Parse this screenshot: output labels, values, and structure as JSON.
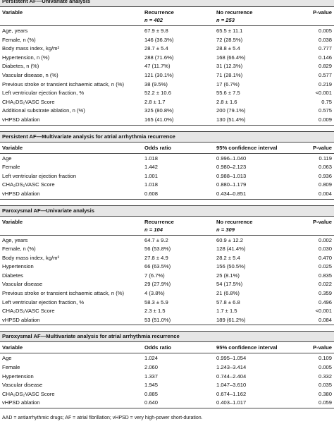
{
  "sections": [
    {
      "title": "Persistent AF—Univariate analysis",
      "columns": [
        {
          "label": "Variable"
        },
        {
          "label": "Recurrence",
          "n": "n = 402"
        },
        {
          "label": "No recurrence",
          "n": "n = 253"
        },
        {
          "label": "P-value"
        }
      ],
      "rows": [
        [
          "Age, years",
          "67.9 ± 9.8",
          "65.5 ± 11.1",
          "0.005"
        ],
        [
          "Female, n (%)",
          "146 (36.3%)",
          "72 (28.5%)",
          "0.038"
        ],
        [
          "Body mass index, kg/m²",
          "28.7 ± 5.4",
          "28.8 ± 5.4",
          "0.777"
        ],
        [
          "Hypertension, n (%)",
          "288 (71.6%)",
          "168 (66.4%)",
          "0.146"
        ],
        [
          "Diabetes, n (%)",
          "47 (11.7%)",
          "31 (12.3%)",
          "0.829"
        ],
        [
          "Vascular disease, n (%)",
          "121 (30.1%)",
          "71 (28.1%)",
          "0.577"
        ],
        [
          "Previous stroke or transient ischaemic attack, n (%)",
          "38 (9.5%)",
          "17 (6.7%)",
          "0.219"
        ],
        [
          "Left ventricular ejection fraction, %",
          "52.2 ± 10.6",
          "55.6 ± 7.5",
          "<0.001"
        ],
        [
          "CHA₂DS₂VASC Score",
          "2.8 ± 1.7",
          "2.8 ± 1.6",
          "0.75"
        ],
        [
          "Additional substrate ablation, n (%)",
          "325 (80.8%)",
          "200 (79.1%)",
          "0.575"
        ],
        [
          "vHPSD ablation",
          "165 (41.0%)",
          "130 (51.4%)",
          "0.009"
        ]
      ]
    },
    {
      "title": "Persistent AF—Multivariate analysis for atrial arrhythmia recurrence",
      "columns": [
        {
          "label": "Variable"
        },
        {
          "label": "Odds ratio"
        },
        {
          "label": "95% confidence interval"
        },
        {
          "label": "P-value"
        }
      ],
      "rows": [
        [
          "Age",
          "1.018",
          "0.996–1.040",
          "0.119"
        ],
        [
          "Female",
          "1.442",
          "0.980–2.123",
          "0.063"
        ],
        [
          "Left ventricular ejection fraction",
          "1.001",
          "0.988–1.013",
          "0.936"
        ],
        [
          "CHA₂DS₂VASC Score",
          "1.018",
          "0.880–1.179",
          "0.809"
        ],
        [
          "vHPSD ablation",
          "0.608",
          "0.434–0.851",
          "0.004"
        ]
      ]
    },
    {
      "title": "Paroxysmal AF—Univariate analysis",
      "columns": [
        {
          "label": "Variable"
        },
        {
          "label": "Recurrence",
          "n": "n = 104"
        },
        {
          "label": "No recurrence",
          "n": "n = 309"
        },
        {
          "label": "P-value"
        }
      ],
      "rows": [
        [
          "Age, years",
          "64.7 ± 9.2",
          "60.9 ± 12.2",
          "0.002"
        ],
        [
          "Female, n (%)",
          "56 (53.8%)",
          "128 (41.4%)",
          "0.030"
        ],
        [
          "Body mass index, kg/m²",
          "27.8 ± 4.9",
          "28.2 ± 5.4",
          "0.470"
        ],
        [
          "Hypertension",
          "66 (63.5%)",
          "156 (50.5%)",
          "0.025"
        ],
        [
          "Diabetes",
          "7 (6.7%)",
          "25 (8.1%)",
          "0.835"
        ],
        [
          "Vascular disease",
          "29 (27.9%)",
          "54 (17.5%)",
          "0.022"
        ],
        [
          "Previous stroke or transient ischaemic attack, n (%)",
          "4 (3.8%)",
          "21 (6.8%)",
          "0.359"
        ],
        [
          "Left ventricular ejection fraction, %",
          "58.3 ± 5.9",
          "57.8 ± 6.8",
          "0.496"
        ],
        [
          "CHA₂DS₂VASC Score",
          "2.3 ± 1.5",
          "1.7 ± 1.5",
          "<0.001"
        ],
        [
          "vHPSD ablation",
          "53 (51.0%)",
          "189 (61.2%)",
          "0.084"
        ]
      ]
    },
    {
      "title": "Paroxysmal AF—Multivariate analysis for atrial arrhythmia recurrence",
      "columns": [
        {
          "label": "Variable"
        },
        {
          "label": "Odds ratio"
        },
        {
          "label": "95% confidence interval"
        },
        {
          "label": "P-value"
        }
      ],
      "rows": [
        [
          "Age",
          "1.024",
          "0.995–1.054",
          "0.109"
        ],
        [
          "Female",
          "2.060",
          "1.243–3.414",
          "0.005"
        ],
        [
          "Hypertension",
          "1.337",
          "0.744–2.404",
          "0.332"
        ],
        [
          "Vascular disease",
          "1.945",
          "1.047–3.610",
          "0.035"
        ],
        [
          "CHA₂DS₂VASC Score",
          "0.885",
          "0.674–1.162",
          "0.380"
        ],
        [
          "vHPSD ablation",
          "0.640",
          "0.403–1.017",
          "0.059"
        ]
      ]
    }
  ],
  "footnote": "AAD = antiarrhythmic drugs; AF = atrial fibrillation; vHPSD = very high-power short-duration."
}
